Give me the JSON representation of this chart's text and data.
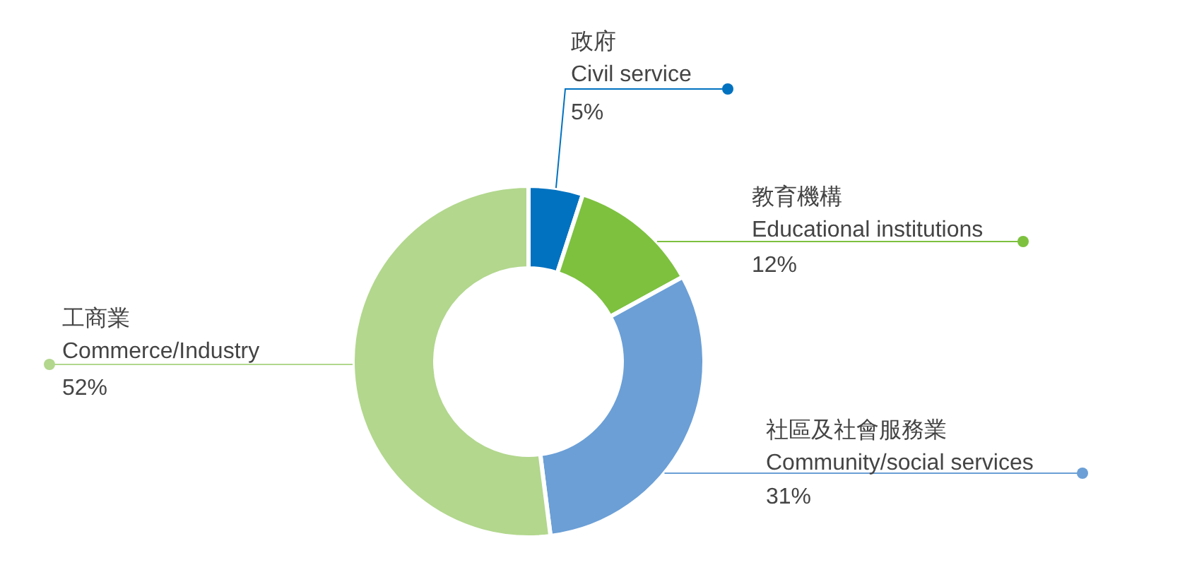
{
  "chart_data": {
    "type": "donut",
    "categories": [
      "政府\nCivil service",
      "教育機構\nEducational institutions",
      "社區及社會服務業\nCommunity/social services",
      "工商業\nCommerce/Industry"
    ],
    "values": [
      5,
      12,
      31,
      52
    ],
    "colors": [
      "#0072c0",
      "#7dc13f",
      "#6b9fd6",
      "#b2d78d"
    ],
    "value_labels": [
      "5%",
      "12%",
      "31%",
      "52%"
    ]
  }
}
